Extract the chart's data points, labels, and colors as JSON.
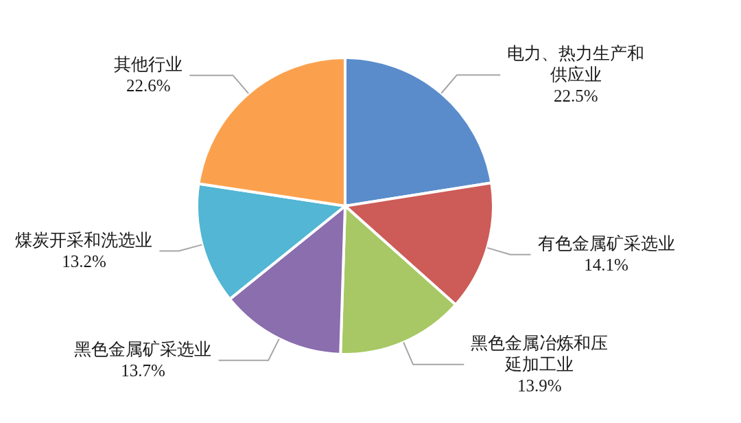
{
  "chart_data": {
    "type": "pie",
    "categories": [
      "电力、热力生产和供应业",
      "有色金属矿采选业",
      "黑色金属冶炼和压延加工业",
      "黑色金属矿采选业",
      "煤炭开采和洗选业",
      "其他行业"
    ],
    "values": [
      22.5,
      14.1,
      13.9,
      13.7,
      13.2,
      22.6
    ],
    "colors": [
      "#5a8ccb",
      "#cd5b57",
      "#a7c864",
      "#8b6eae",
      "#52b6d4",
      "#fba14e"
    ],
    "value_labels": [
      "22.5%",
      "14.1%",
      "13.9%",
      "13.7%",
      "13.2%",
      "22.6%"
    ]
  }
}
